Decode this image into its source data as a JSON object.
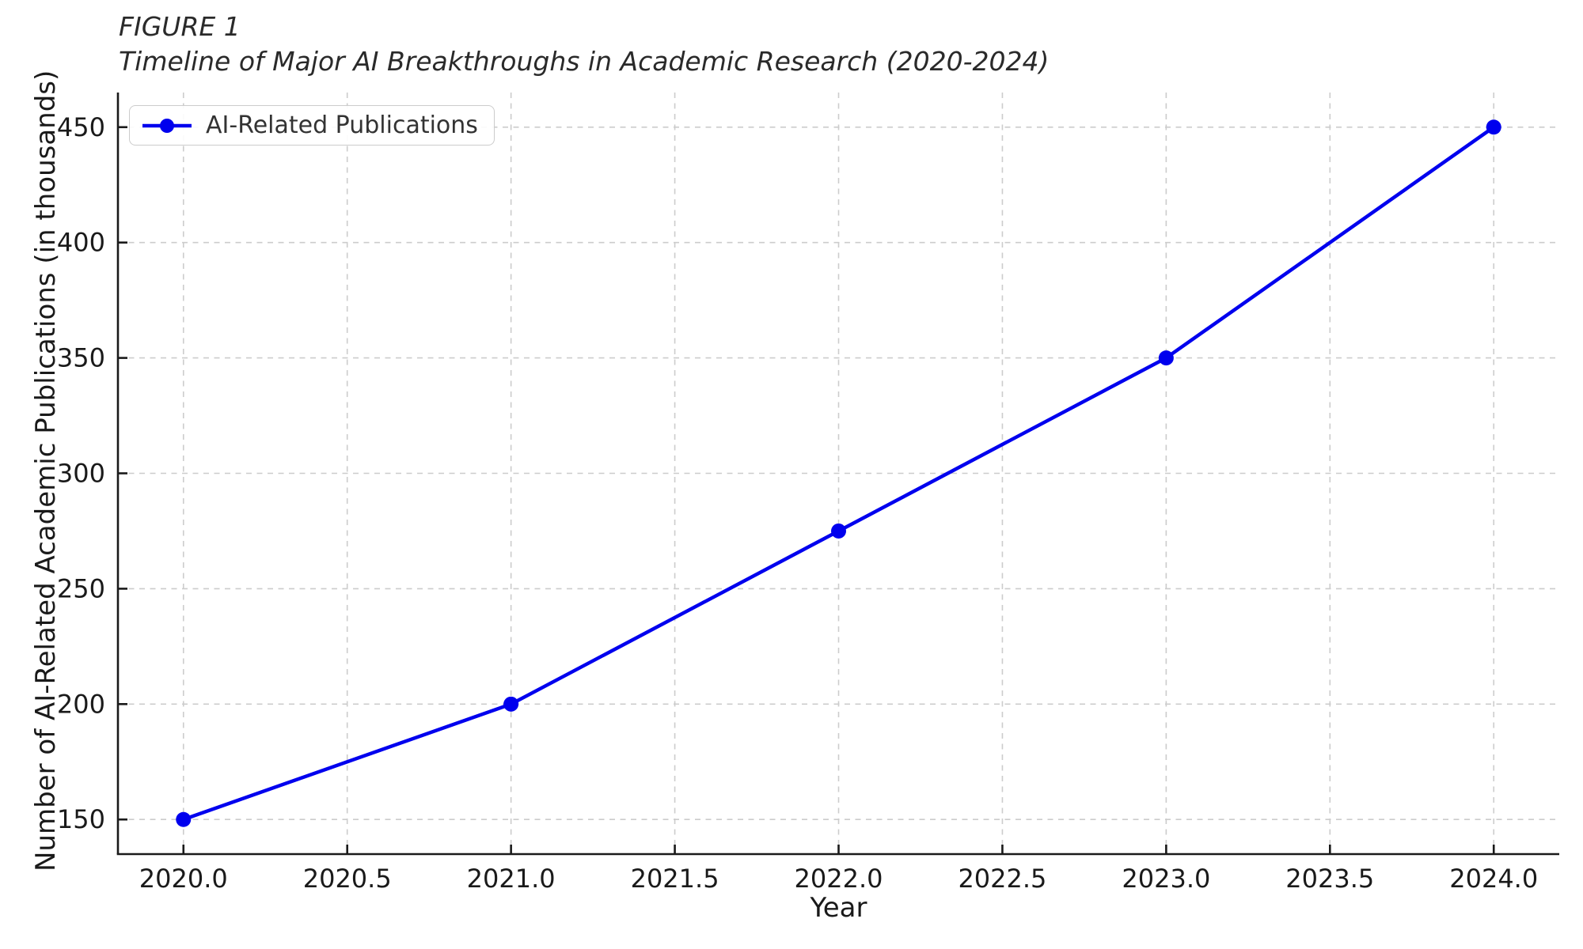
{
  "figure": {
    "title_line1": "FIGURE 1",
    "title_line2": "Timeline of Major AI Breakthroughs in Academic Research (2020-2024)"
  },
  "legend": {
    "label": "AI-Related Publications"
  },
  "chart_data": {
    "type": "line",
    "title": "FIGURE 1 — Timeline of Major AI Breakthroughs in Academic Research (2020-2024)",
    "xlabel": "Year",
    "ylabel": "Number of AI-Related Academic Publications (in thousands)",
    "series": [
      {
        "name": "AI-Related Publications",
        "x": [
          2020,
          2021,
          2022,
          2023,
          2024
        ],
        "y": [
          150,
          200,
          275,
          350,
          450
        ]
      }
    ],
    "x_ticks": [
      2020.0,
      2020.5,
      2021.0,
      2021.5,
      2022.0,
      2022.5,
      2023.0,
      2023.5,
      2024.0
    ],
    "x_tick_labels": [
      "2020.0",
      "2020.5",
      "2021.0",
      "2021.5",
      "2022.0",
      "2022.5",
      "2023.0",
      "2023.5",
      "2024.0"
    ],
    "y_ticks": [
      150,
      200,
      250,
      300,
      350,
      400,
      450
    ],
    "y_tick_labels": [
      "150",
      "200",
      "250",
      "300",
      "350",
      "400",
      "450"
    ],
    "xlim": [
      2019.8,
      2024.2
    ],
    "ylim": [
      135,
      465
    ],
    "grid": true,
    "grid_style": "dashed",
    "legend_position": "upper left",
    "colors": {
      "line": "#0000ee",
      "marker": "#0000ee",
      "grid": "#cccccc",
      "spine": "#1a1a1a",
      "tick_label": "#1a1a1a"
    }
  }
}
